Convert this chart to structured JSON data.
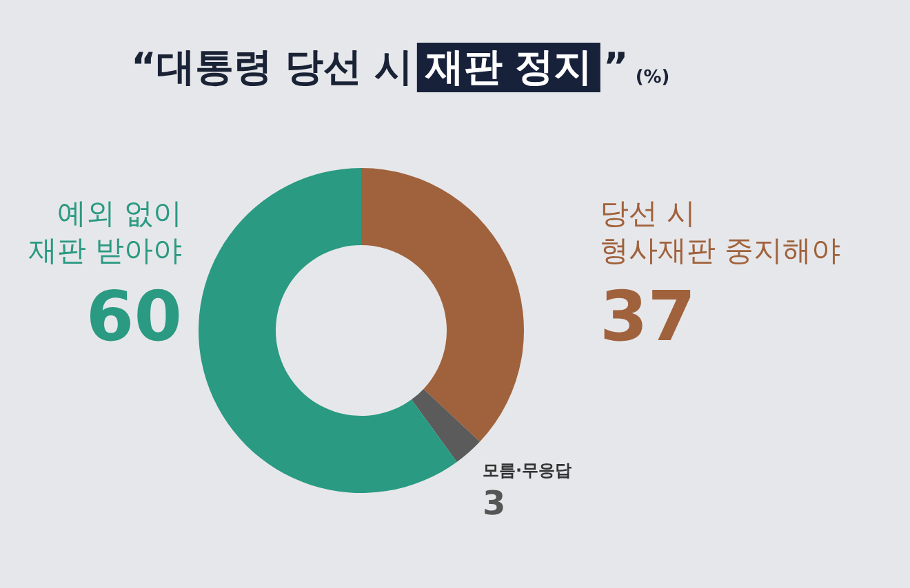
{
  "chart_data": {
    "type": "donut",
    "title": "“대통령 당선 시 재판 정지”",
    "subtitle": "(%)",
    "categories": [
      "당선 시\n형사재판 중지해야",
      "모름·무응답",
      "예외 없이\n재판 받아야"
    ],
    "values": [
      37,
      3,
      60
    ],
    "colors": [
      "#a0623c",
      "#5b5b5b",
      "#2a9a82"
    ],
    "data_labels": true
  }
}
